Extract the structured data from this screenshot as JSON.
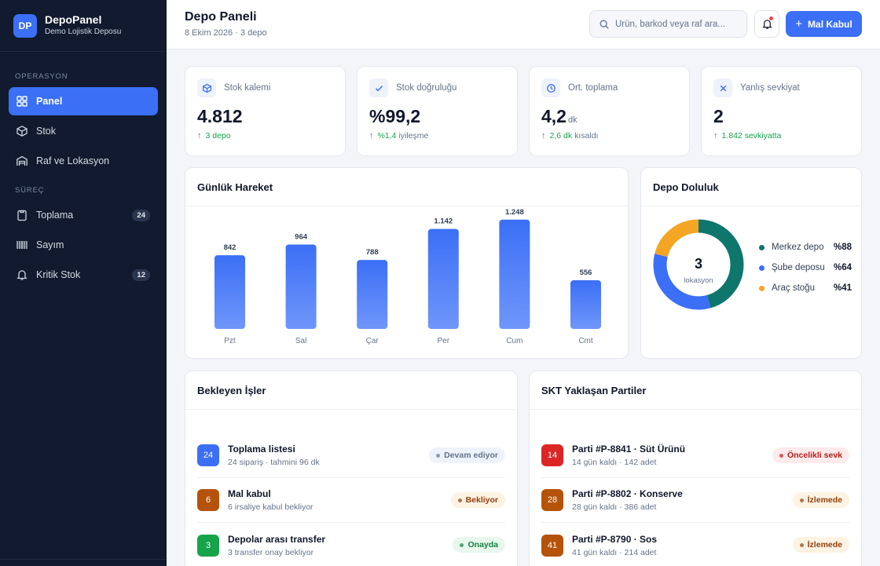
{
  "brand": {
    "logo": "DP",
    "name": "DepoPanel",
    "subtitle": "Demo Lojistik Deposu"
  },
  "sidebar": {
    "sections": [
      "OPERASYON",
      "SÜREÇ"
    ],
    "items": [
      {
        "label": "Panel",
        "icon": "grid-icon",
        "active": true
      },
      {
        "label": "Stok",
        "icon": "box-icon"
      },
      {
        "label": "Raf ve Lokasyon",
        "icon": "warehouse-icon"
      },
      {
        "label": "Toplama",
        "icon": "clipboard-icon",
        "badge": "24"
      },
      {
        "label": "Sayım",
        "icon": "barcode-icon"
      },
      {
        "label": "Kritik Stok",
        "icon": "bell-icon",
        "badge": "12"
      }
    ]
  },
  "header": {
    "title": "Depo Paneli",
    "subtitle": "8 Ekim 2026 · 3 depo",
    "search_placeholder": "Ürün, barkod veya raf ara...",
    "cta_label": "Mal Kabul"
  },
  "kpis": [
    {
      "label": "Stok kalemi",
      "value": "4.812",
      "unit": "",
      "delta": "3 depo",
      "delta_rest": "",
      "icon": "box-icon"
    },
    {
      "label": "Stok doğruluğu",
      "value": "%99,2",
      "unit": "",
      "delta": "%1,4",
      "delta_rest": "iyileşme",
      "icon": "check-icon"
    },
    {
      "label": "Ort. toplama",
      "value": "4,2",
      "unit": "dk",
      "delta": "2,6 dk",
      "delta_rest": "kısaldı",
      "icon": "clock-icon"
    },
    {
      "label": "Yanlış sevkiyat",
      "value": "2",
      "unit": "",
      "delta": "1.842 sevkiyatta",
      "delta_rest": "",
      "icon": "x-icon"
    }
  ],
  "chart_data": {
    "type": "bar",
    "title": "Günlük Hareket",
    "categories": [
      "Pzt",
      "Sal",
      "Çar",
      "Per",
      "Cum",
      "Cmt"
    ],
    "values": [
      842,
      964,
      788,
      1142,
      1248,
      556
    ],
    "value_labels": [
      "842",
      "964",
      "788",
      "1.142",
      "1.248",
      "556"
    ],
    "ylim": [
      0,
      1300
    ],
    "grid": false,
    "bar_color": "#3b6ff6"
  },
  "occupancy": {
    "title": "Depo Doluluk",
    "center_value": "3",
    "center_label": "lokasyon",
    "items": [
      {
        "label": "Merkez depo",
        "value": "%88",
        "color": "#0f766e"
      },
      {
        "label": "Şube deposu",
        "value": "%64",
        "color": "#3b6ff6"
      },
      {
        "label": "Araç stoğu",
        "value": "%41",
        "color": "#f5a524"
      }
    ]
  },
  "pending": {
    "title": "Bekleyen İşler",
    "items": [
      {
        "num": "24",
        "title": "Toplama listesi",
        "sub": "24 sipariş · tahmini 96 dk",
        "status": "Devam ediyor",
        "num_color": "#3b6ff6",
        "pill_bg": "#eef2fb",
        "pill_fg": "#64748b"
      },
      {
        "num": "6",
        "title": "Mal kabul",
        "sub": "6 irsaliye kabul bekliyor",
        "status": "Bekliyor",
        "num_color": "#b45309",
        "pill_bg": "#fdf3e3",
        "pill_fg": "#92400e"
      },
      {
        "num": "3",
        "title": "Depolar arası transfer",
        "sub": "3 transfer onay bekliyor",
        "status": "Onayda",
        "num_color": "#16a34a",
        "pill_bg": "#e8f7ee",
        "pill_fg": "#15803d"
      }
    ]
  },
  "expiry": {
    "title": "SKT Yaklaşan Partiler",
    "items": [
      {
        "num": "14",
        "title": "Parti #P-8841 · Süt Ürünü",
        "sub": "14 gün kaldı · 142 adet",
        "status": "Öncelikli sevk",
        "num_color": "#dc2626",
        "pill_bg": "#fdeaea",
        "pill_fg": "#b91c1c"
      },
      {
        "num": "28",
        "title": "Parti #P-8802 · Konserve",
        "sub": "28 gün kaldı · 386 adet",
        "status": "İzlemede",
        "num_color": "#b45309",
        "pill_bg": "#fdf3e3",
        "pill_fg": "#92400e"
      },
      {
        "num": "41",
        "title": "Parti #P-8790 · Sos",
        "sub": "41 gün kaldı · 214 adet",
        "status": "İzlemede",
        "num_color": "#b45309",
        "pill_bg": "#fdf3e3",
        "pill_fg": "#92400e"
      }
    ]
  }
}
